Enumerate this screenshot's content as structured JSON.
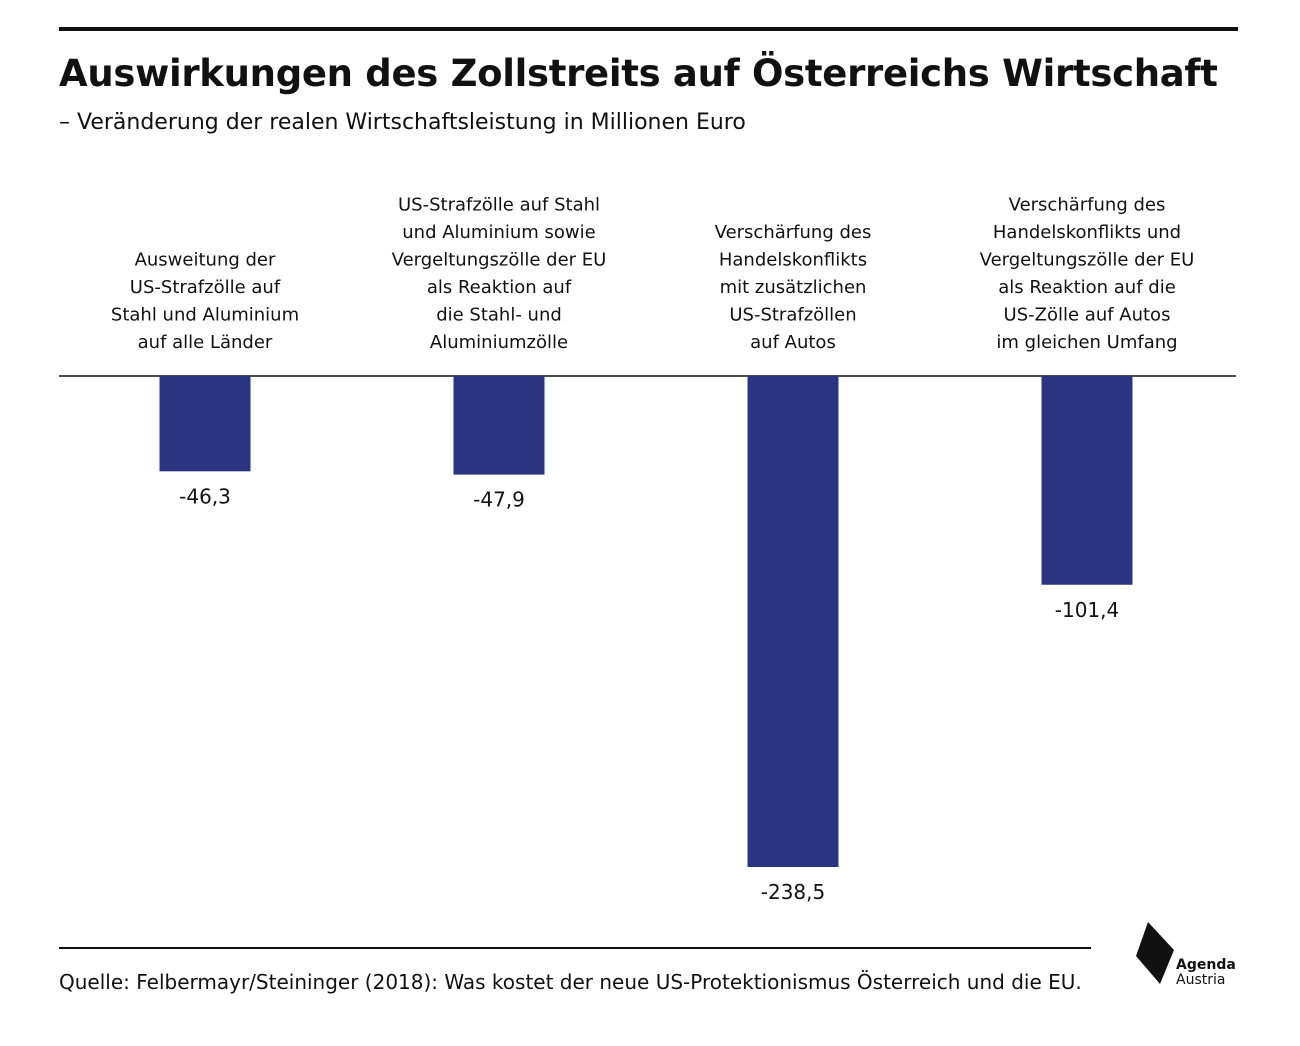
{
  "header": {
    "title": "Auswirkungen des Zollstreits auf Österreichs Wirtschaft",
    "subtitle": "– Veränderung der realen Wirtschaftsleistung in Millionen Euro"
  },
  "chart_data": {
    "type": "bar",
    "categories": [
      [
        "Ausweitung der",
        "US-Strafzölle auf",
        "Stahl und Aluminium",
        "auf alle Länder"
      ],
      [
        "US-Strafzölle auf Stahl",
        "und Aluminium sowie",
        "Vergeltungszölle der EU",
        "als Reaktion auf",
        "die Stahl- und",
        "Aluminiumzölle"
      ],
      [
        "Verschärfung des",
        "Handelskonflikts",
        "mit zusätzlichen",
        "US-Strafzöllen",
        "auf Autos"
      ],
      [
        "Verschärfung des",
        "Handelskonflikts und",
        "Vergeltungszölle der EU",
        "als Reaktion auf die",
        "US-Zölle auf Autos",
        "im gleichen Umfang"
      ]
    ],
    "values": [
      -46.3,
      -47.9,
      -238.5,
      -101.4
    ],
    "value_labels": [
      "-46,3",
      "-47,9",
      "-238,5",
      "-101,4"
    ],
    "ylim": [
      -238.5,
      0
    ],
    "bar_color": "#2b3480",
    "grid": false,
    "legend": "none"
  },
  "footer": {
    "source": "Quelle: Felbermayr/Steininger (2018): Was kostet der neue US-Protektionismus Österreich und die EU.",
    "logo_line1": "Agenda",
    "logo_line2": "Austria"
  }
}
